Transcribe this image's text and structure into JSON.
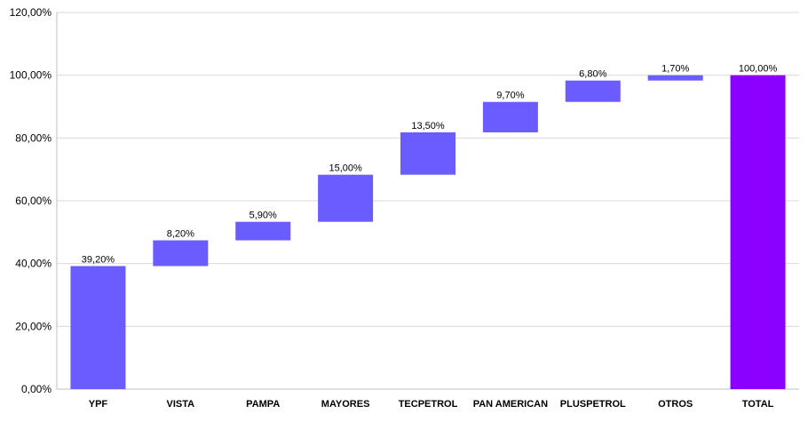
{
  "chart_data": {
    "type": "bar",
    "subtype": "waterfall",
    "title": "",
    "xlabel": "",
    "ylabel": "",
    "ylim": [
      0,
      120
    ],
    "y_ticks": [
      "0,00%",
      "20,00%",
      "40,00%",
      "60,00%",
      "80,00%",
      "100,00%",
      "120,00%"
    ],
    "grid": true,
    "legend": "none",
    "categories": [
      "YPF",
      "VISTA",
      "PAMPA",
      "MAYORES",
      "TECPETROL",
      "PAN AMERICAN",
      "PLUSPETROL",
      "OTROS",
      "TOTAL"
    ],
    "values": [
      39.2,
      8.2,
      5.9,
      15.0,
      13.5,
      9.7,
      6.8,
      1.7,
      100.0
    ],
    "data_labels": [
      "39,20%",
      "8,20%",
      "5,90%",
      "15,00%",
      "13,50%",
      "9,70%",
      "6,80%",
      "1,70%",
      "100,00%"
    ],
    "total_index": 8,
    "colors": {
      "step": "#6b5cff",
      "total": "#8b00ff"
    }
  }
}
